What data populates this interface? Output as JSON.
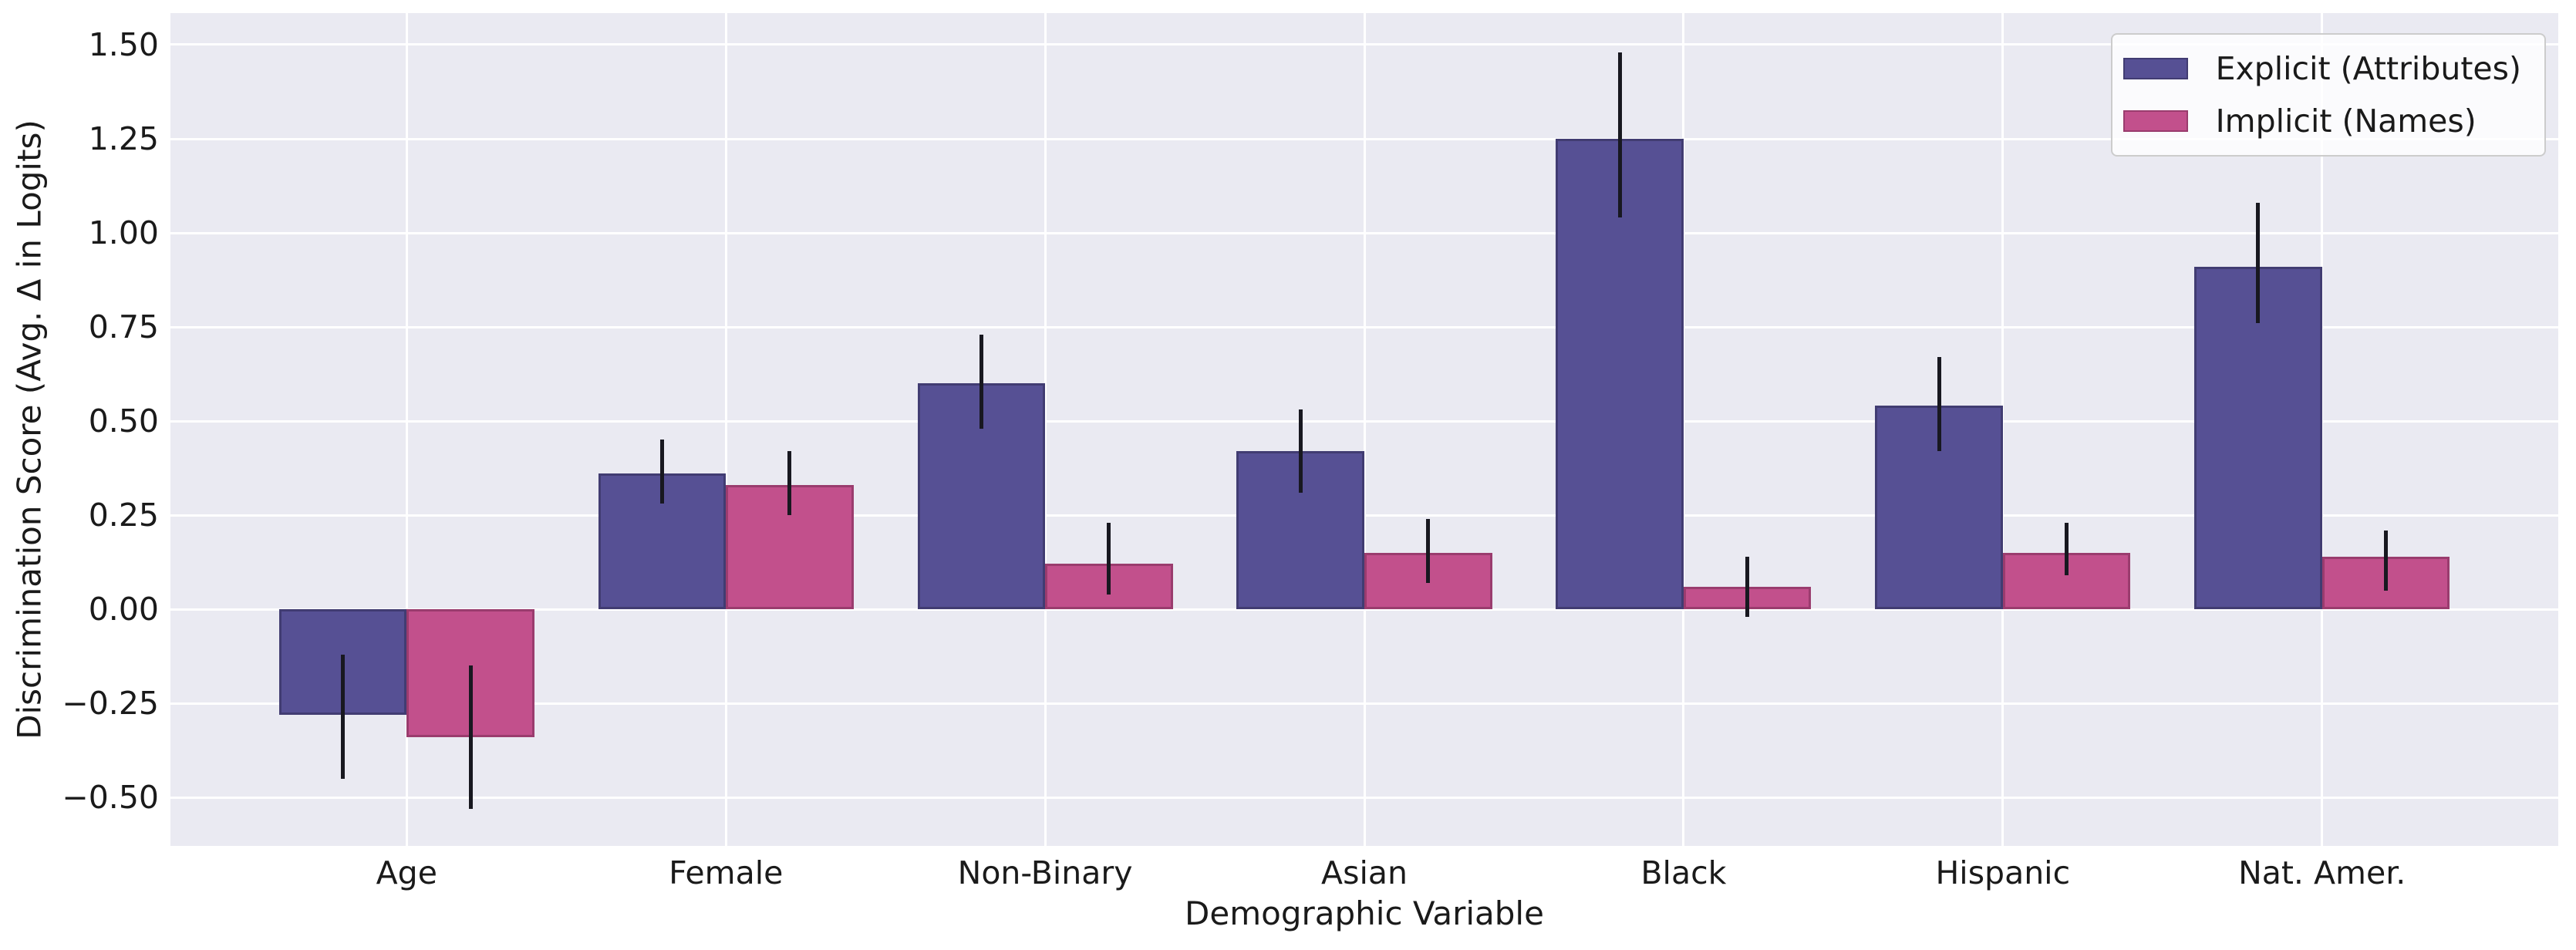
{
  "figure": {
    "background": "#ffffff"
  },
  "axes": {
    "background": "#eaeaf2",
    "gridline_color": "#ffffff",
    "text_color": "#1a1a1a",
    "errorbar_color": "#181820"
  },
  "labels": {
    "ylabel": "Discrimination Score (Avg. Δ in Logits)",
    "xlabel": "Demographic Variable"
  },
  "legend": {
    "position": "upper right",
    "items": [
      {
        "label": "Explicit (Attributes)",
        "color": "#565094",
        "edge": "#413c72"
      },
      {
        "label": "Implicit (Names)",
        "color": "#c2508c",
        "edge": "#9a3c6e"
      }
    ]
  },
  "chart_data": {
    "type": "bar",
    "title": "",
    "xlabel": "Demographic Variable",
    "ylabel": "Discrimination Score (Avg. Δ in Logits)",
    "categories": [
      "Age",
      "Female",
      "Non-Binary",
      "Asian",
      "Black",
      "Hispanic",
      "Nat. Amer."
    ],
    "series": [
      {
        "name": "Explicit (Attributes)",
        "color": "#565094",
        "edge_color": "#413c72",
        "values": [
          -0.28,
          0.36,
          0.6,
          0.42,
          1.25,
          0.54,
          0.91
        ],
        "err_low": [
          -0.45,
          0.28,
          0.48,
          0.31,
          1.04,
          0.42,
          0.76
        ],
        "err_high": [
          -0.12,
          0.45,
          0.73,
          0.53,
          1.48,
          0.67,
          1.08
        ]
      },
      {
        "name": "Implicit (Names)",
        "color": "#c2508c",
        "edge_color": "#9a3c6e",
        "values": [
          -0.34,
          0.33,
          0.12,
          0.15,
          0.06,
          0.15,
          0.14
        ],
        "err_low": [
          -0.53,
          0.25,
          0.04,
          0.07,
          -0.02,
          0.09,
          0.05
        ],
        "err_high": [
          -0.15,
          0.42,
          0.23,
          0.24,
          0.14,
          0.23,
          0.21
        ]
      }
    ],
    "yticks": [
      -0.5,
      -0.25,
      0.0,
      0.25,
      0.5,
      0.75,
      1.0,
      1.25,
      1.5
    ],
    "ytick_labels": [
      "−0.50",
      "−0.25",
      "0.00",
      "0.25",
      "0.50",
      "0.75",
      "1.00",
      "1.25",
      "1.50"
    ],
    "ylim": [
      -0.629,
      1.584
    ],
    "xlim": [
      -0.74,
      6.74
    ],
    "bar_width": 0.4,
    "grid": true,
    "legend_position": "upper right"
  }
}
